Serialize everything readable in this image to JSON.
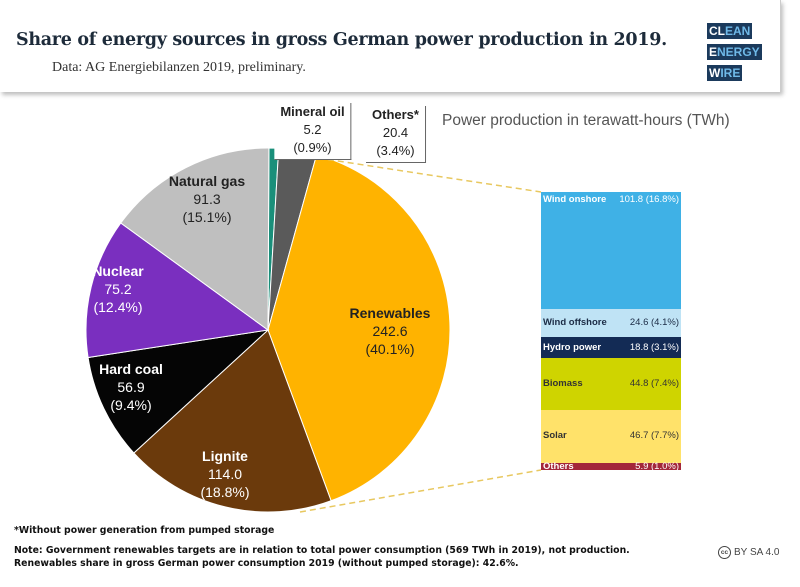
{
  "header": {
    "title": "Share of energy sources in gross German power production in 2019.",
    "subtitle": "Data: AG Energiebilanzen 2019, preliminary.",
    "logo": [
      "CLEAN",
      "ENERGY",
      "WIRE"
    ]
  },
  "chart_data": [
    {
      "type": "pie",
      "unit_label": "Power production in terawatt-hours (TWh)",
      "slices": [
        {
          "name": "Mineral oil",
          "value": 5.2,
          "pct": "(0.9%)",
          "value_label": "5.2",
          "color": "#1a8f7a"
        },
        {
          "name": "Others*",
          "value": 20.4,
          "pct": "(3.4%)",
          "value_label": "20.4",
          "color": "#5a5a5a"
        },
        {
          "name": "Renewables",
          "value": 242.6,
          "pct": "(40.1%)",
          "value_label": "242.6",
          "color": "#ffb300"
        },
        {
          "name": "Lignite",
          "value": 114.0,
          "pct": "(18.8%)",
          "value_label": "114.0",
          "color": "#6b3a0c"
        },
        {
          "name": "Hard coal",
          "value": 56.9,
          "pct": "(9.4%)",
          "value_label": "56.9",
          "color": "#050505"
        },
        {
          "name": "Nuclear",
          "value": 75.2,
          "pct": "(12.4%)",
          "value_label": "75.2",
          "color": "#7a2fbf"
        },
        {
          "name": "Natural gas",
          "value": 91.3,
          "pct": "(15.1%)",
          "value_label": "91.3",
          "color": "#bfbfbf"
        }
      ]
    },
    {
      "type": "stacked-bar",
      "parent": "Renewables",
      "segments": [
        {
          "name": "Wind onshore",
          "value": 101.8,
          "label": "101.8 (16.8%)",
          "color": "#3fb1e6",
          "text_color": "#ffffff"
        },
        {
          "name": "Wind offshore",
          "value": 24.6,
          "label": "24.6 (4.1%)",
          "color": "#bfe3f5",
          "text_color": "#1b2b45"
        },
        {
          "name": "Hydro power",
          "value": 18.8,
          "label": "18.8 (3.1%)",
          "color": "#132b55",
          "text_color": "#ffffff"
        },
        {
          "name": "Biomass",
          "value": 44.8,
          "label": "44.8 (7.4%)",
          "color": "#cfd400",
          "text_color": "#333333"
        },
        {
          "name": "Solar",
          "value": 46.7,
          "label": "46.7 (7.7%)",
          "color": "#ffe26a",
          "text_color": "#333333"
        },
        {
          "name": "Others",
          "value": 5.9,
          "label": "5.9 (1.0%)",
          "color": "#a3273a",
          "text_color": "#ffffff"
        }
      ]
    }
  ],
  "footer": {
    "footnote": "*Without power generation from pumped storage",
    "note1": "Note: Government renewables targets are in relation to total power consumption (569 TWh in 2019), not production.",
    "note2": "Renewables share in gross German power consumption 2019 (without pumped storage): 42.6%.",
    "license": "BY SA 4.0",
    "license_icon": "cc-icon"
  }
}
